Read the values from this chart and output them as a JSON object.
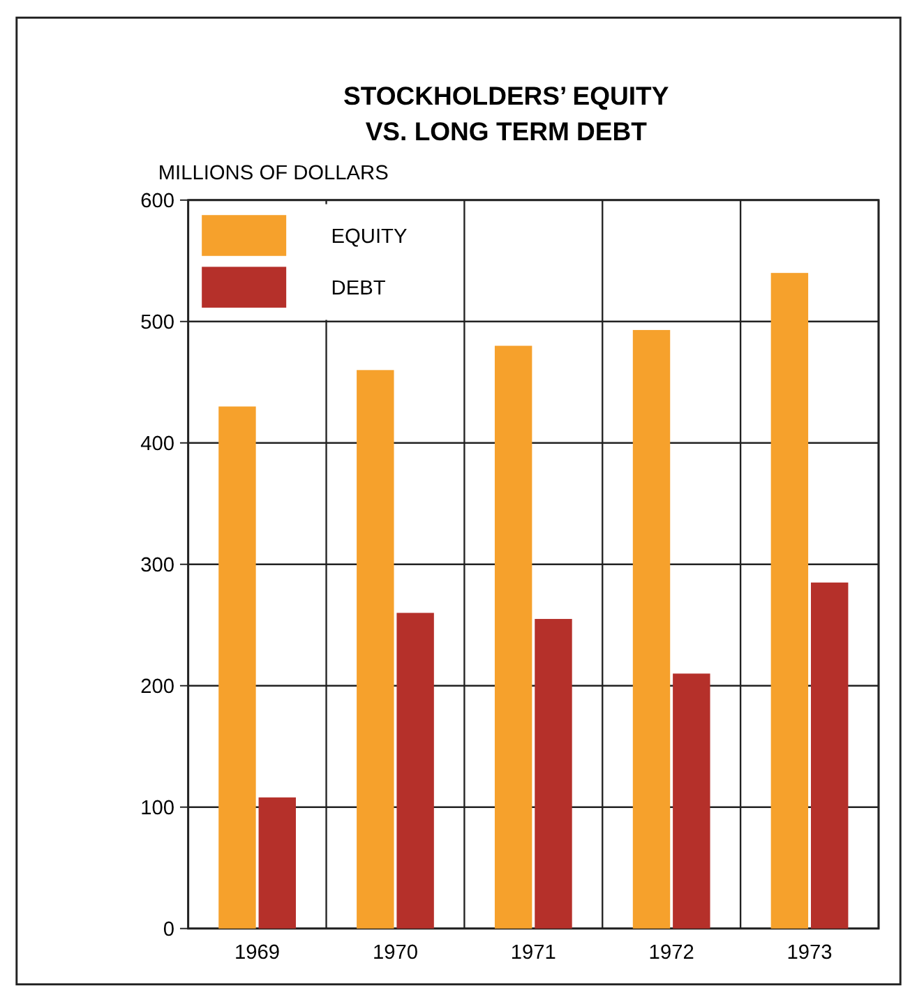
{
  "chart_data": {
    "type": "bar",
    "title": "STOCKHOLDERS’ EQUITY\nVS. LONG TERM DEBT",
    "ylabel": "MILLIONS OF DOLLARS",
    "categories": [
      "1969",
      "1970",
      "1971",
      "1972",
      "1973"
    ],
    "series": [
      {
        "name": "EQUITY",
        "color": "#f6a12c",
        "values": [
          430,
          460,
          480,
          493,
          540
        ]
      },
      {
        "name": "DEBT",
        "color": "#b5302a",
        "values": [
          108,
          260,
          255,
          210,
          285
        ]
      }
    ],
    "ylim": [
      0,
      600
    ],
    "yticks": [
      0,
      100,
      200,
      300,
      400,
      500,
      600
    ],
    "grid": true,
    "legend": "top left"
  }
}
